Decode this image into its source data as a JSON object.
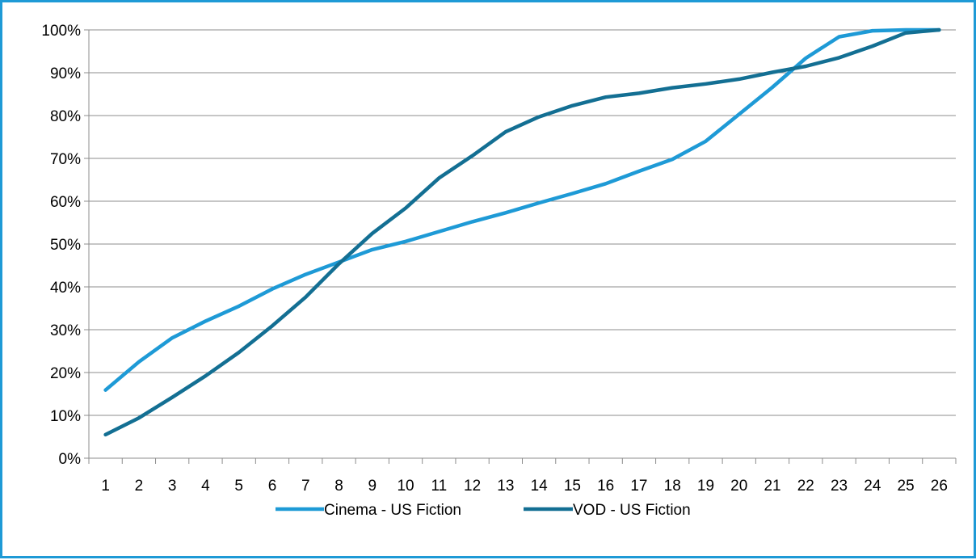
{
  "chart_data": {
    "type": "line",
    "title": "",
    "xlabel": "",
    "ylabel": "",
    "categories": [
      "1",
      "2",
      "3",
      "4",
      "5",
      "6",
      "7",
      "8",
      "9",
      "10",
      "11",
      "12",
      "13",
      "14",
      "15",
      "16",
      "17",
      "18",
      "19",
      "20",
      "21",
      "22",
      "23",
      "24",
      "25",
      "26"
    ],
    "ylim": [
      0,
      100
    ],
    "y_ticks": [
      0,
      10,
      20,
      30,
      40,
      50,
      60,
      70,
      80,
      90,
      100
    ],
    "y_tick_labels": [
      "0%",
      "10%",
      "20%",
      "30%",
      "40%",
      "50%",
      "60%",
      "70%",
      "80%",
      "90%",
      "100%"
    ],
    "grid": true,
    "legend_position": "bottom",
    "series": [
      {
        "name": "Cinema - US Fiction",
        "color": "#1e9ad6",
        "values": [
          15.9,
          22.5,
          28.1,
          32.0,
          35.5,
          39.5,
          42.9,
          45.8,
          48.7,
          50.6,
          52.9,
          55.2,
          57.3,
          59.6,
          61.8,
          64.1,
          67.0,
          69.8,
          74.0,
          80.3,
          86.6,
          93.4,
          98.4,
          99.8,
          100.0,
          100.0
        ]
      },
      {
        "name": "VOD - US Fiction",
        "color": "#136f93",
        "values": [
          5.5,
          9.4,
          14.2,
          19.2,
          24.7,
          30.9,
          37.6,
          45.4,
          52.5,
          58.4,
          65.4,
          70.6,
          76.2,
          79.7,
          82.3,
          84.3,
          85.2,
          86.5,
          87.4,
          88.5,
          90.1,
          91.5,
          93.5,
          96.2,
          99.3,
          100.0
        ]
      }
    ]
  }
}
